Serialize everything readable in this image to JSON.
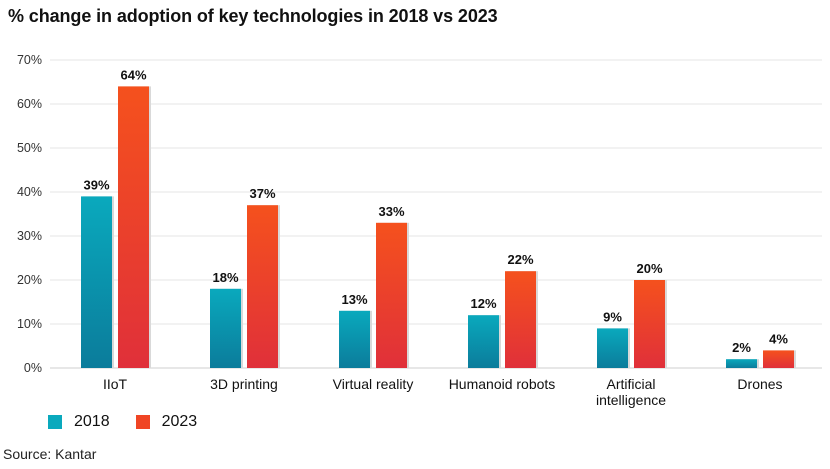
{
  "title": "% change in adoption of key technologies in 2018 vs 2023",
  "source": "Source: Kantar",
  "colors": {
    "series_2018_top": "#0aa9bd",
    "series_2018_bottom": "#0b7c9b",
    "series_2023_top": "#f5511d",
    "series_2023_bottom": "#e0303a",
    "grid": "#e6e6e6",
    "axis_text": "#333333"
  },
  "legend": [
    {
      "label": "2018",
      "color": "#0aa9bd"
    },
    {
      "label": "2023",
      "color": "#f04524"
    }
  ],
  "chart_data": {
    "type": "bar",
    "title": "% change in adoption of key technologies in 2018 vs 2023",
    "categories": [
      [
        "IIoT"
      ],
      [
        "3D printing"
      ],
      [
        "Virtual reality"
      ],
      [
        "Humanoid robots"
      ],
      [
        "Artificial",
        "intelligence"
      ],
      [
        "Drones"
      ]
    ],
    "series": [
      {
        "name": "2018",
        "values": [
          39,
          18,
          13,
          12,
          9,
          2
        ],
        "labels": [
          "39%",
          "18%",
          "13%",
          "12%",
          "9%",
          "2%"
        ]
      },
      {
        "name": "2023",
        "values": [
          64,
          37,
          33,
          22,
          20,
          4
        ],
        "labels": [
          "64%",
          "37%",
          "33%",
          "22%",
          "20%",
          "4%"
        ]
      }
    ],
    "ylim": [
      0,
      70
    ],
    "yticks": [
      0,
      10,
      20,
      30,
      40,
      50,
      60,
      70
    ],
    "ytick_labels": [
      "0%",
      "10%",
      "20%",
      "30%",
      "40%",
      "50%",
      "60%",
      "70%"
    ],
    "xlabel": "",
    "ylabel": "",
    "grid": true,
    "legend_position": "bottom-left"
  }
}
